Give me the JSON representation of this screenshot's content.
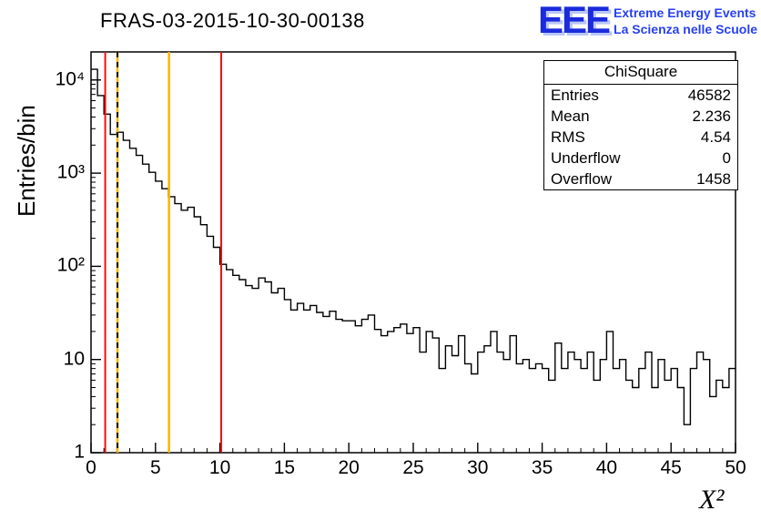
{
  "title": "FRAS-03-2015-10-30-00138",
  "logo": {
    "eee": "EEE",
    "line1": "Extreme Energy Events",
    "line2": "La Scienza nelle Scuole",
    "color": "#2741f0"
  },
  "stats": {
    "title": "ChiSquare",
    "rows": [
      {
        "label": "Entries",
        "value": "46582"
      },
      {
        "label": "Mean",
        "value": "2.236"
      },
      {
        "label": "RMS",
        "value": "4.54"
      },
      {
        "label": "Underflow",
        "value": "0"
      },
      {
        "label": "Overflow",
        "value": "1458"
      }
    ]
  },
  "chart_data": {
    "type": "bar",
    "style": "step-histogram",
    "title": "FRAS-03-2015-10-30-00138",
    "xlabel": "X²",
    "ylabel": "Entries/bin",
    "xlim": [
      0,
      50
    ],
    "ylim": [
      1,
      20000
    ],
    "yscale": "log",
    "grid": false,
    "line_color": "#000000",
    "bin_start": 0,
    "bin_width": 0.5,
    "values": [
      13000,
      6800,
      4300,
      2600,
      2750,
      2250,
      1850,
      1550,
      1250,
      1020,
      820,
      680,
      560,
      470,
      400,
      430,
      340,
      280,
      210,
      160,
      105,
      92,
      80,
      72,
      62,
      58,
      75,
      68,
      52,
      58,
      44,
      34,
      40,
      34,
      38,
      32,
      29,
      33,
      27,
      26,
      26,
      23,
      27,
      30,
      21,
      18,
      20,
      22,
      24,
      19,
      22,
      12,
      20,
      17,
      8,
      14,
      11,
      18,
      9,
      7,
      12,
      14,
      20,
      12,
      10,
      18,
      9,
      10,
      8,
      9,
      8,
      6,
      15,
      8,
      12,
      10,
      8,
      12,
      6,
      10,
      20,
      8,
      10,
      6,
      5,
      8,
      12,
      5,
      10,
      6,
      8,
      5,
      2,
      8,
      12,
      10,
      4,
      6,
      5,
      8
    ],
    "xticks": [
      0,
      5,
      10,
      15,
      20,
      25,
      30,
      35,
      40,
      45,
      50
    ],
    "ytick_values": [
      1,
      10,
      100,
      1000,
      10000
    ],
    "ytick_labels": [
      "1",
      "10",
      "10²",
      "10³",
      "10⁴"
    ],
    "vlines": [
      {
        "x": 1.1,
        "color": "#ee1111",
        "dash": false,
        "width": 2
      },
      {
        "x": 2.05,
        "color": "#ffb300",
        "dash": false,
        "width": 2.5
      },
      {
        "x": 2.05,
        "color": "#111111",
        "dash": true,
        "width": 2
      },
      {
        "x": 6.05,
        "color": "#ffb300",
        "dash": false,
        "width": 2.5
      },
      {
        "x": 10.1,
        "color": "#ee1111",
        "dash": false,
        "width": 2
      }
    ]
  }
}
